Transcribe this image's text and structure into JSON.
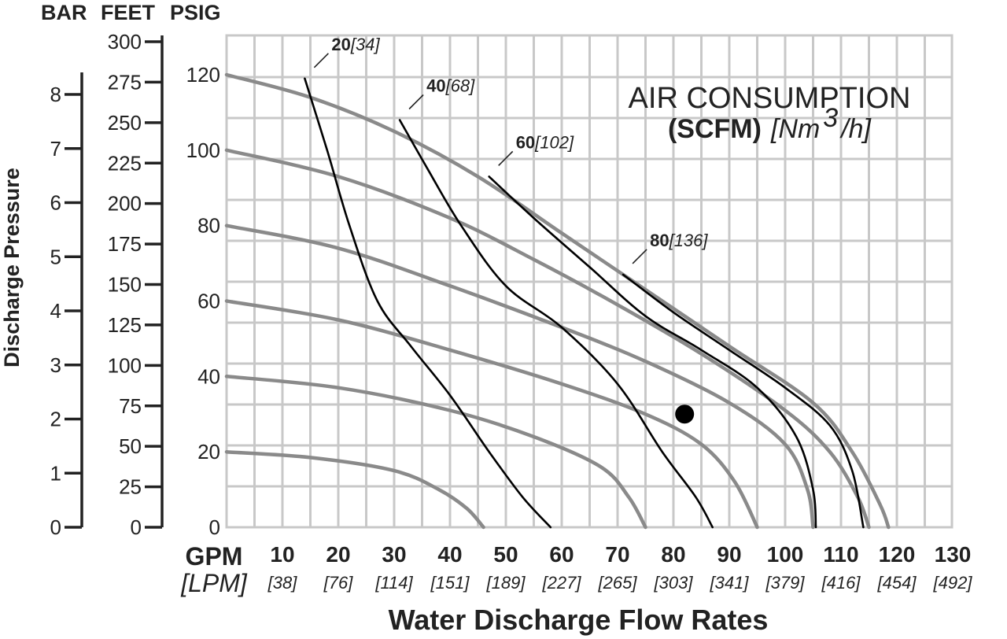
{
  "chart_data": {
    "type": "line",
    "title": "AIR CONSUMPTION",
    "subtitle_bold": "(SCFM)",
    "subtitle_italic_pre": "[Nm",
    "subtitle_sup": "3",
    "subtitle_italic_post": "/h]",
    "xlabel": "Water Discharge Flow Rates",
    "ylabel": "Discharge Pressure",
    "x_unit_primary": "GPM",
    "x_unit_secondary": "[LPM]",
    "x_ticks": [
      {
        "gpm": "10",
        "lpm": "[38]"
      },
      {
        "gpm": "20",
        "lpm": "[76]"
      },
      {
        "gpm": "30",
        "lpm": "[114]"
      },
      {
        "gpm": "40",
        "lpm": "[151]"
      },
      {
        "gpm": "50",
        "lpm": "[189]"
      },
      {
        "gpm": "60",
        "lpm": "[227]"
      },
      {
        "gpm": "70",
        "lpm": "[265]"
      },
      {
        "gpm": "80",
        "lpm": "[303]"
      },
      {
        "gpm": "90",
        "lpm": "[341]"
      },
      {
        "gpm": "100",
        "lpm": "[379]"
      },
      {
        "gpm": "110",
        "lpm": "[416]"
      },
      {
        "gpm": "120",
        "lpm": "[454]"
      },
      {
        "gpm": "130",
        "lpm": "[492]"
      }
    ],
    "xlim": [
      0,
      130
    ],
    "y_axes": {
      "psig": {
        "label": "PSIG",
        "ticks": [
          "0",
          "20",
          "40",
          "60",
          "80",
          "100",
          "120"
        ]
      },
      "feet": {
        "label": "FEET",
        "ticks": [
          "0",
          "25",
          "50",
          "75",
          "100",
          "125",
          "150",
          "175",
          "200",
          "225",
          "250",
          "275",
          "300"
        ]
      },
      "bar": {
        "label": "BAR",
        "ticks": [
          "0",
          "1",
          "2",
          "3",
          "4",
          "5",
          "6",
          "7",
          "8"
        ]
      }
    },
    "ylim_psig": [
      0,
      128
    ],
    "grid": true,
    "series_pressure": [
      {
        "air_psig": 120,
        "points": [
          [
            0,
            120
          ],
          [
            15,
            114
          ],
          [
            30,
            105
          ],
          [
            45,
            93
          ],
          [
            60,
            78
          ],
          [
            75,
            63
          ],
          [
            90,
            48
          ],
          [
            105,
            33
          ],
          [
            112,
            20
          ],
          [
            117,
            6
          ],
          [
            118.5,
            0
          ]
        ]
      },
      {
        "air_psig": 100,
        "points": [
          [
            0,
            100
          ],
          [
            20,
            93
          ],
          [
            40,
            82
          ],
          [
            55,
            71
          ],
          [
            70,
            59
          ],
          [
            85,
            46
          ],
          [
            100,
            31
          ],
          [
            108,
            20
          ],
          [
            113,
            8
          ],
          [
            115,
            0
          ]
        ]
      },
      {
        "air_psig": 80,
        "points": [
          [
            0,
            80
          ],
          [
            20,
            74
          ],
          [
            40,
            64
          ],
          [
            60,
            53
          ],
          [
            75,
            44
          ],
          [
            90,
            33
          ],
          [
            100,
            22
          ],
          [
            104,
            10
          ],
          [
            105,
            0
          ]
        ]
      },
      {
        "air_psig": 60,
        "points": [
          [
            0,
            60
          ],
          [
            20,
            55
          ],
          [
            40,
            47
          ],
          [
            60,
            38
          ],
          [
            75,
            30
          ],
          [
            85,
            22
          ],
          [
            91,
            12
          ],
          [
            95,
            0
          ]
        ]
      },
      {
        "air_psig": 40,
        "points": [
          [
            0,
            40
          ],
          [
            20,
            37
          ],
          [
            40,
            31
          ],
          [
            55,
            24
          ],
          [
            67,
            16
          ],
          [
            72,
            8
          ],
          [
            75,
            0
          ]
        ]
      },
      {
        "air_psig": 20,
        "points": [
          [
            0,
            20
          ],
          [
            15,
            18.5
          ],
          [
            30,
            15
          ],
          [
            38,
            10
          ],
          [
            43,
            5
          ],
          [
            46,
            0
          ]
        ]
      }
    ],
    "series_air_consumption": [
      {
        "label_bold": "20",
        "label_italic": "[34]",
        "points": [
          [
            14,
            119
          ],
          [
            18,
            100
          ],
          [
            22,
            80
          ],
          [
            27,
            60
          ],
          [
            33,
            48
          ],
          [
            40,
            35
          ],
          [
            47,
            20
          ],
          [
            53,
            8
          ],
          [
            58,
            0
          ]
        ]
      },
      {
        "label_bold": "40",
        "label_italic": "[68]",
        "points": [
          [
            31,
            108
          ],
          [
            36,
            95
          ],
          [
            42,
            80
          ],
          [
            50,
            64
          ],
          [
            60,
            53
          ],
          [
            70,
            38
          ],
          [
            78,
            20
          ],
          [
            84,
            8
          ],
          [
            87,
            0
          ]
        ]
      },
      {
        "label_bold": "60",
        "label_italic": "[102]",
        "points": [
          [
            47,
            93
          ],
          [
            55,
            82
          ],
          [
            65,
            69
          ],
          [
            75,
            56
          ],
          [
            85,
            47
          ],
          [
            95,
            37
          ],
          [
            102,
            24
          ],
          [
            105,
            10
          ],
          [
            105.5,
            0
          ]
        ]
      },
      {
        "label_bold": "80",
        "label_italic": "[136]",
        "points": [
          [
            71,
            67
          ],
          [
            80,
            57
          ],
          [
            90,
            47
          ],
          [
            100,
            37
          ],
          [
            108,
            27
          ],
          [
            112,
            15
          ],
          [
            114,
            0
          ]
        ]
      }
    ],
    "operating_point": {
      "gpm": 82,
      "psig": 30
    }
  }
}
